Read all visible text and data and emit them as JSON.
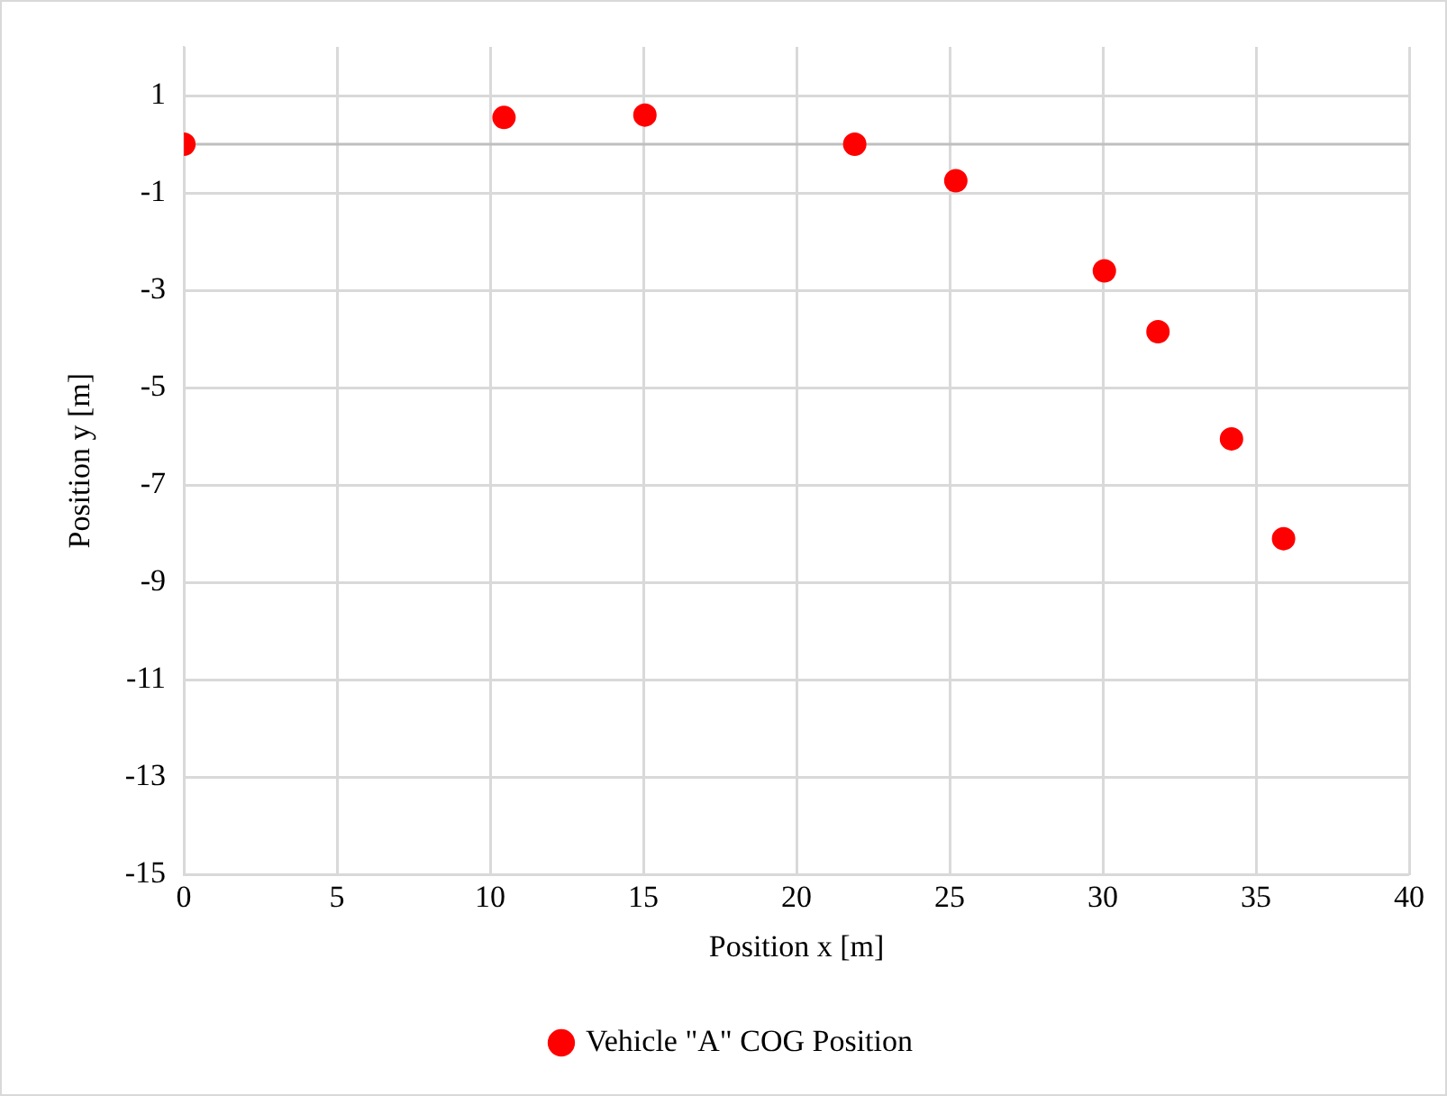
{
  "chart_data": {
    "type": "scatter",
    "xlabel": "Position x [m]",
    "ylabel": "Position y [m]",
    "series": [
      {
        "name": "Vehicle \"A\" COG Position",
        "color": "#ff0000",
        "x": [
          0,
          10.45,
          15.05,
          21.9,
          25.2,
          30.05,
          31.8,
          34.2,
          35.9
        ],
        "values": [
          0,
          0.55,
          0.6,
          0,
          -0.75,
          -2.6,
          -3.85,
          -6.05,
          -8.1
        ]
      }
    ],
    "xlim": [
      0,
      40
    ],
    "xticks": [
      0,
      5,
      10,
      15,
      20,
      25,
      30,
      35,
      40
    ],
    "ylim": [
      -15,
      2
    ],
    "yticks": [
      -15,
      -13,
      -11,
      -9,
      -7,
      -5,
      -3,
      -1,
      1
    ],
    "ref_lines": [
      {
        "axis": "y",
        "value": 0,
        "color": "#bfbfbf"
      }
    ],
    "grid": true,
    "legend": "bottom",
    "marker": "circle"
  }
}
